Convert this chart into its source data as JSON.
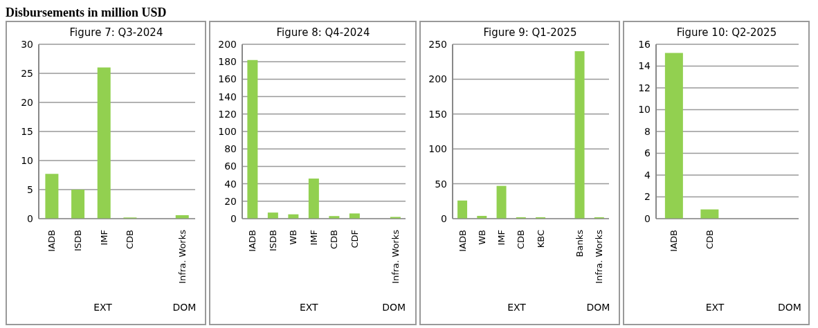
{
  "chart_data": [
    {
      "type": "bar",
      "title": "Figure 7: Q3-2024",
      "categories": [
        "IADB",
        "ISDB",
        "IMF",
        "CDB",
        null,
        "Infra. Works"
      ],
      "values": [
        7.7,
        5,
        26,
        0.2,
        null,
        0.6
      ],
      "color": "#92d050",
      "ylim": [
        0,
        30
      ],
      "yticks": [
        0,
        5,
        10,
        15,
        20,
        25,
        30
      ],
      "grid": "y",
      "annotations": [
        "Disbursements in million USD",
        "EXT",
        "DOM"
      ]
    },
    {
      "type": "bar",
      "title": "Figure 8: Q4-2024",
      "categories": [
        "IADB",
        "ISDB",
        "WB",
        "IMF",
        "CDB",
        "CDF",
        null,
        "Infra. Works"
      ],
      "values": [
        182,
        7,
        5,
        46,
        3,
        6,
        null,
        2
      ],
      "color": "#92d050",
      "ylim": [
        0,
        200
      ],
      "yticks": [
        0,
        20,
        40,
        60,
        80,
        100,
        120,
        140,
        160,
        180,
        200
      ],
      "grid": "y",
      "annotations": [
        "EXT",
        "DOM"
      ]
    },
    {
      "type": "bar",
      "title": "Figure 9: Q1-2025",
      "categories": [
        "IADB",
        "WB",
        "IMF",
        "CDB",
        "KBC",
        null,
        "Banks",
        "Infra. Works"
      ],
      "values": [
        26,
        4,
        47,
        2,
        2,
        null,
        240,
        2
      ],
      "color": "#92d050",
      "ylim": [
        0,
        250
      ],
      "yticks": [
        0,
        50,
        100,
        150,
        200,
        250
      ],
      "grid": "y",
      "annotations": [
        "EXT",
        "DOM"
      ]
    },
    {
      "type": "bar",
      "title": "Figure 10: Q2-2025",
      "categories": [
        "IADB",
        "CDB",
        null,
        null
      ],
      "values": [
        15.2,
        0.85,
        null,
        null
      ],
      "color": "#92d050",
      "ylim": [
        0,
        16
      ],
      "yticks": [
        0,
        2,
        4,
        6,
        8,
        10,
        12,
        14,
        16
      ],
      "grid": "y",
      "annotations": [
        "EXT",
        "DOM"
      ]
    }
  ]
}
